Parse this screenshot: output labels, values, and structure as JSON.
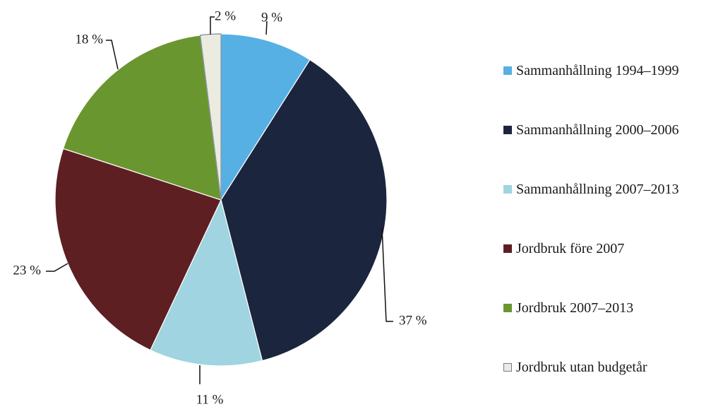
{
  "chart_data": {
    "type": "pie",
    "start": "top",
    "direction": "clockwise",
    "labels": [
      "Sammanhållning 1994–1999",
      "Sammanhållning 2000–2006",
      "Sammanhållning 2007–2013",
      "Jordbruk före 2007",
      "Jordbruk 2007–2013",
      "Jordbruk utan budgetår"
    ],
    "values": [
      9,
      37,
      11,
      23,
      18,
      2
    ],
    "value_labels": [
      "9 %",
      "37 %",
      "11 %",
      "23 %",
      "18 %",
      "2 %"
    ],
    "colors": [
      "#56b0e4",
      "#1b253d",
      "#9fd4e0",
      "#5e1f23",
      "#6a962f",
      "#ecebdf"
    ],
    "legend_position": "right"
  }
}
